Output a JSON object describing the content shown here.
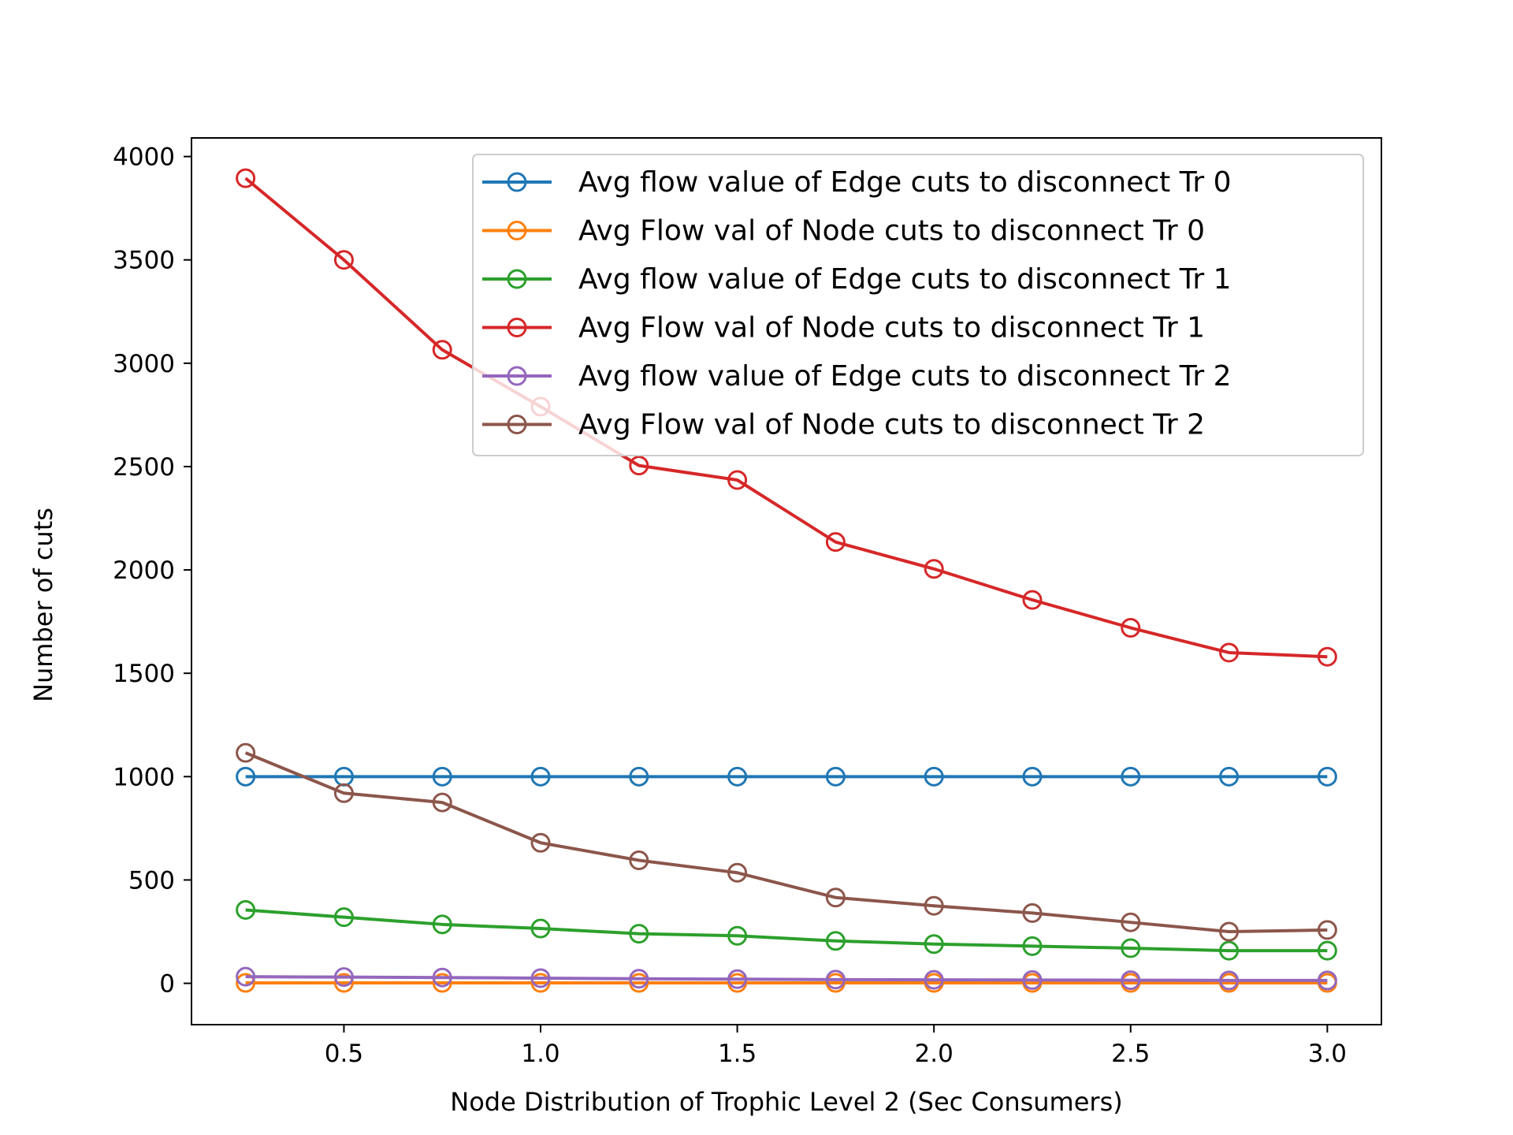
{
  "chart_data": {
    "type": "line",
    "title": "",
    "xlabel": "Node Distribution of Trophic Level 2 (Sec Consumers)",
    "ylabel": "Number of cuts",
    "xlim": [
      0.1125,
      3.1375
    ],
    "ylim": [
      -200,
      4090
    ],
    "xticks": [
      0.5,
      1.0,
      1.5,
      2.0,
      2.5,
      3.0
    ],
    "xtick_labels": [
      "0.5",
      "1.0",
      "1.5",
      "2.0",
      "2.5",
      "3.0"
    ],
    "yticks": [
      0,
      500,
      1000,
      1500,
      2000,
      2500,
      3000,
      3500,
      4000
    ],
    "ytick_labels": [
      "0",
      "500",
      "1000",
      "1500",
      "2000",
      "2500",
      "3000",
      "3500",
      "4000"
    ],
    "grid": false,
    "legend_position": "top-right",
    "marker": "open-circle",
    "x": [
      0.25,
      0.5,
      0.75,
      1.0,
      1.25,
      1.5,
      1.75,
      2.0,
      2.25,
      2.5,
      2.75,
      3.0
    ],
    "series": [
      {
        "name": "Avg flow value of Edge cuts to disconnect Tr 0",
        "color": "#1f77b4",
        "values": [
          1000,
          1000,
          1000,
          1000,
          1000,
          1000,
          1000,
          1000,
          1000,
          1000,
          1000,
          1000
        ]
      },
      {
        "name": "Avg Flow val of Node cuts to disconnect Tr 0",
        "color": "#ff7f0e",
        "values": [
          2,
          2,
          2,
          2,
          2,
          2,
          2,
          2,
          2,
          2,
          2,
          2
        ]
      },
      {
        "name": "Avg flow value of Edge cuts to disconnect Tr 1",
        "color": "#2ca02c",
        "values": [
          355,
          320,
          285,
          265,
          240,
          230,
          205,
          190,
          180,
          170,
          158,
          158
        ]
      },
      {
        "name": "Avg Flow val of Node cuts to disconnect Tr 1",
        "color": "#d62728",
        "values": [
          3895,
          3500,
          3065,
          2790,
          2505,
          2435,
          2135,
          2005,
          1855,
          1720,
          1600,
          1580
        ]
      },
      {
        "name": "Avg flow value of Edge cuts to disconnect Tr 2",
        "color": "#9467bd",
        "values": [
          32,
          30,
          28,
          25,
          22,
          20,
          18,
          17,
          16,
          15,
          14,
          14
        ]
      },
      {
        "name": "Avg Flow val of Node cuts to disconnect Tr 2",
        "color": "#8c564b",
        "values": [
          1115,
          920,
          875,
          680,
          595,
          535,
          415,
          375,
          340,
          295,
          250,
          258
        ]
      }
    ]
  }
}
